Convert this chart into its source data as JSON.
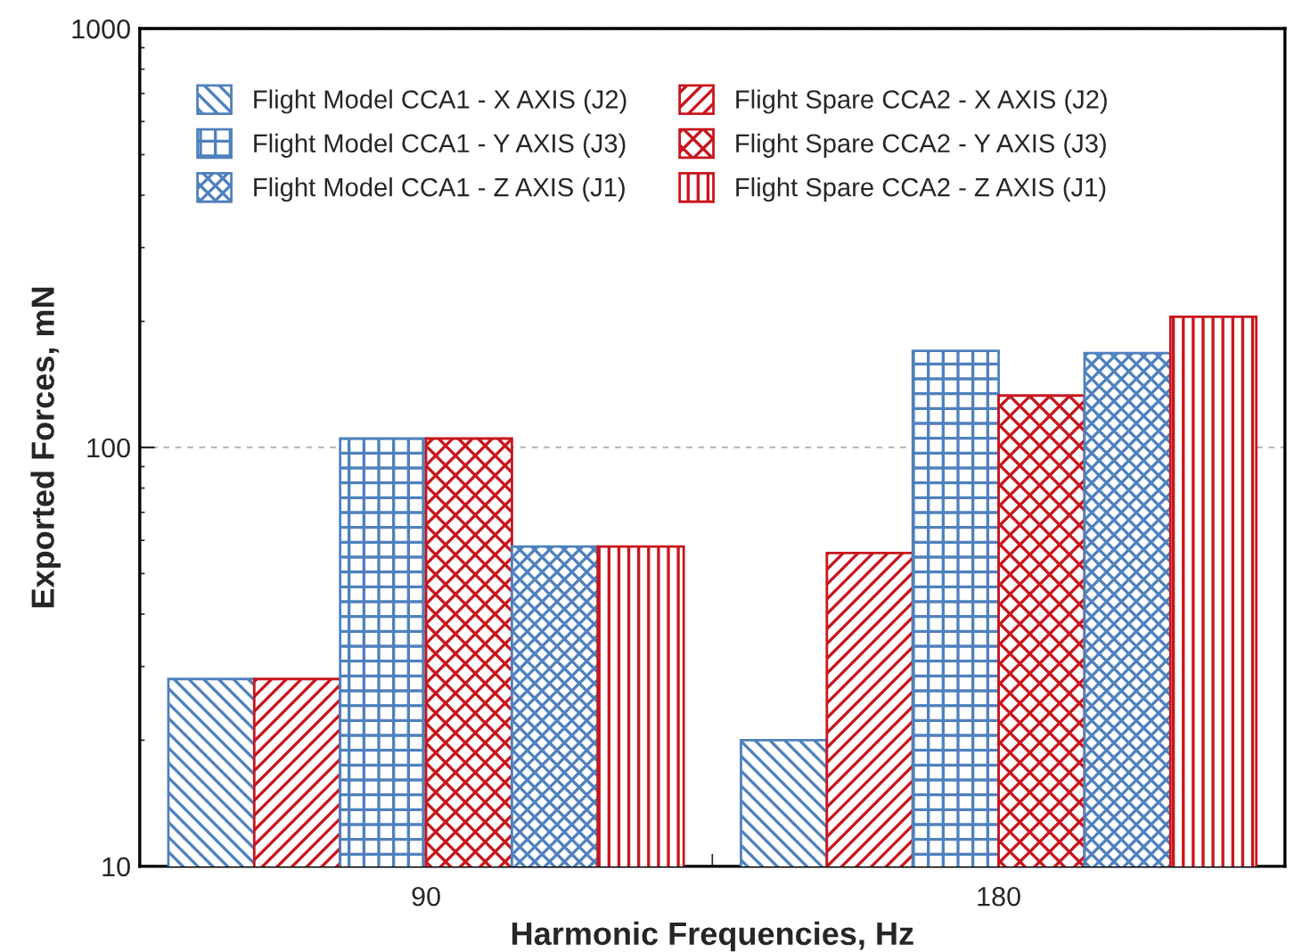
{
  "chart_data": {
    "type": "bar",
    "xlabel": "Harmonic Frequencies, Hz",
    "ylabel": "Exported Forces, mN",
    "categories": [
      "90",
      "180"
    ],
    "series": [
      {
        "name": "Flight Model CCA1 - X AXIS (J2)",
        "color": "#4f81bd",
        "values": [
          28,
          20
        ]
      },
      {
        "name": "Flight Spare CCA2 - X AXIS (J2)",
        "color": "#c8161d",
        "values": [
          28,
          56
        ]
      },
      {
        "name": "Flight Model CCA1 - Y AXIS (J3)",
        "color": "#4f81bd",
        "values": [
          105,
          170
        ]
      },
      {
        "name": "Flight Spare CCA2 - Y AXIS (J3)",
        "color": "#c8161d",
        "values": [
          105,
          133
        ]
      },
      {
        "name": "Flight Model CCA1 - Z AXIS (J1)",
        "color": "#4f81bd",
        "values": [
          58,
          168
        ]
      },
      {
        "name": "Flight Spare CCA2 - Z AXIS (J1)",
        "color": "#c8161d",
        "values": [
          58,
          205
        ]
      }
    ],
    "log": true,
    "ylim": [
      10,
      1000
    ],
    "yticks": [
      10,
      100,
      1000
    ],
    "grid": "y",
    "legend": "top"
  }
}
